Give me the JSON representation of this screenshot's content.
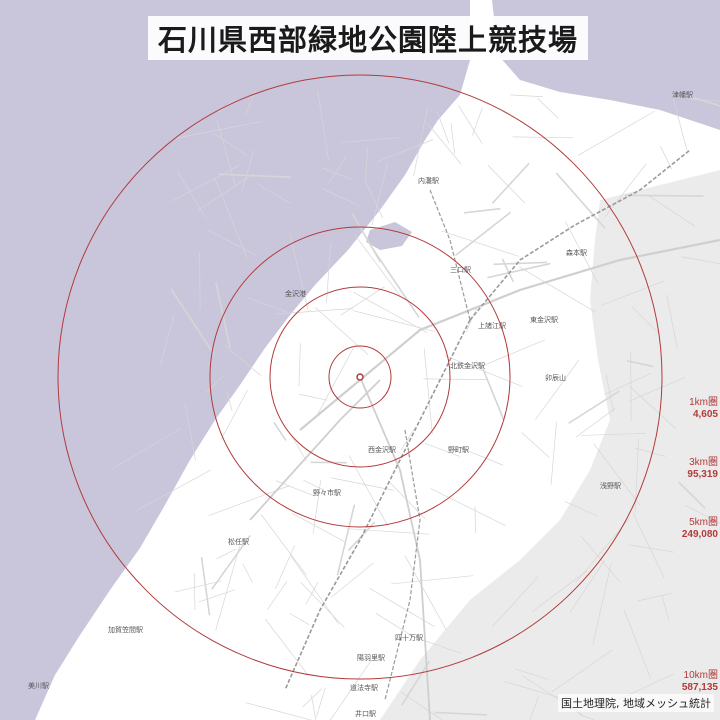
{
  "title": "石川県西部緑地公園陸上競技場",
  "credit": "国土地理院, 地域メッシュ統計",
  "colors": {
    "sea": "#c9c6dc",
    "land": "#ffffff",
    "hills": "#ecebeb",
    "circle": "#b23a3a"
  },
  "rings": [
    {
      "label": "1km圏",
      "value": "4,605"
    },
    {
      "label": "3km圏",
      "value": "95,319"
    },
    {
      "label": "5km圏",
      "value": "249,080"
    },
    {
      "label": "10km圏",
      "value": "587,135"
    }
  ],
  "places": [
    "内灘駅",
    "森本駅",
    "三口駅",
    "上諸江駅",
    "東金沢駅",
    "金沢港",
    "北鉄金沢駅",
    "卯辰山",
    "西金沢駅",
    "野町駅",
    "野々市駅",
    "松任駅",
    "加賀笠間駅",
    "四十万駅",
    "陽羽里駅",
    "道法寺駅",
    "井口駅",
    "美川駅",
    "津幡駅",
    "浅野駅"
  ]
}
